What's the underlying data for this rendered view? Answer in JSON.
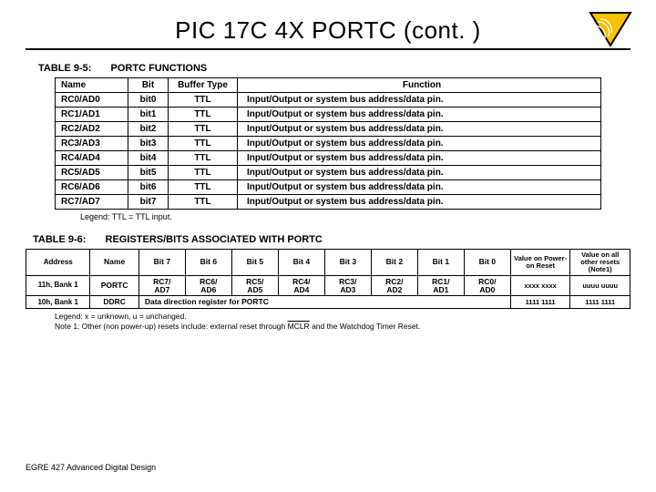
{
  "title": "PIC 17C 4X PORTC (cont. )",
  "logo_colors": {
    "bg": "#ffffff",
    "tri": "#f6c200",
    "dark": "#000000"
  },
  "table95": {
    "label_num": "TABLE 9-5:",
    "label_cap": "PORTC FUNCTIONS",
    "headers": {
      "name": "Name",
      "bit": "Bit",
      "buffer": "Buffer Type",
      "function": "Function"
    },
    "rows": [
      {
        "name": "RC0/AD0",
        "bit": "bit0",
        "buffer": "TTL",
        "function": "Input/Output or system bus address/data pin."
      },
      {
        "name": "RC1/AD1",
        "bit": "bit1",
        "buffer": "TTL",
        "function": "Input/Output or system bus address/data pin."
      },
      {
        "name": "RC2/AD2",
        "bit": "bit2",
        "buffer": "TTL",
        "function": "Input/Output or system bus address/data pin."
      },
      {
        "name": "RC3/AD3",
        "bit": "bit3",
        "buffer": "TTL",
        "function": "Input/Output or system bus address/data pin."
      },
      {
        "name": "RC4/AD4",
        "bit": "bit4",
        "buffer": "TTL",
        "function": "Input/Output or system bus address/data pin."
      },
      {
        "name": "RC5/AD5",
        "bit": "bit5",
        "buffer": "TTL",
        "function": "Input/Output or system bus address/data pin."
      },
      {
        "name": "RC6/AD6",
        "bit": "bit6",
        "buffer": "TTL",
        "function": "Input/Output or system bus address/data pin."
      },
      {
        "name": "RC7/AD7",
        "bit": "bit7",
        "buffer": "TTL",
        "function": "Input/Output or system bus address/data pin."
      }
    ],
    "legend": "Legend:   TTL = TTL input."
  },
  "table96": {
    "label_num": "TABLE 9-6:",
    "label_cap": "REGISTERS/BITS ASSOCIATED WITH PORTC",
    "headers": {
      "address": "Address",
      "name": "Name",
      "bit7": "Bit 7",
      "bit6": "Bit 6",
      "bit5": "Bit 5",
      "bit4": "Bit 4",
      "bit3": "Bit 3",
      "bit2": "Bit 2",
      "bit1": "Bit 1",
      "bit0": "Bit 0",
      "por": "Value on Power-on Reset",
      "other": "Value on all other resets (Note1)"
    },
    "row_portc": {
      "addr": "11h, Bank 1",
      "name": "PORTC",
      "b7a": "RC7/",
      "b7b": "AD7",
      "b6a": "RC6/",
      "b6b": "AD6",
      "b5a": "RC5/",
      "b5b": "AD5",
      "b4a": "RC4/",
      "b4b": "AD4",
      "b3a": "RC3/",
      "b3b": "AD3",
      "b2a": "RC2/",
      "b2b": "AD2",
      "b1a": "RC1/",
      "b1b": "AD1",
      "b0a": "RC0/",
      "b0b": "AD0",
      "por": "xxxx xxxx",
      "other": "uuuu uuuu"
    },
    "row_ddrc": {
      "addr": "10h, Bank 1",
      "name": "DDRC",
      "text": "Data direction register for PORTC",
      "por": "1111 1111",
      "other": "1111 1111"
    },
    "legend_a": "Legend:   x = unknown, u = unchanged.",
    "note_pre": "Note   1:   Other (non power-up) resets include: external reset through ",
    "note_mclr": "MCLR",
    "note_post": " and the Watchdog Timer Reset."
  },
  "footer": "EGRE 427 Advanced Digital Design"
}
